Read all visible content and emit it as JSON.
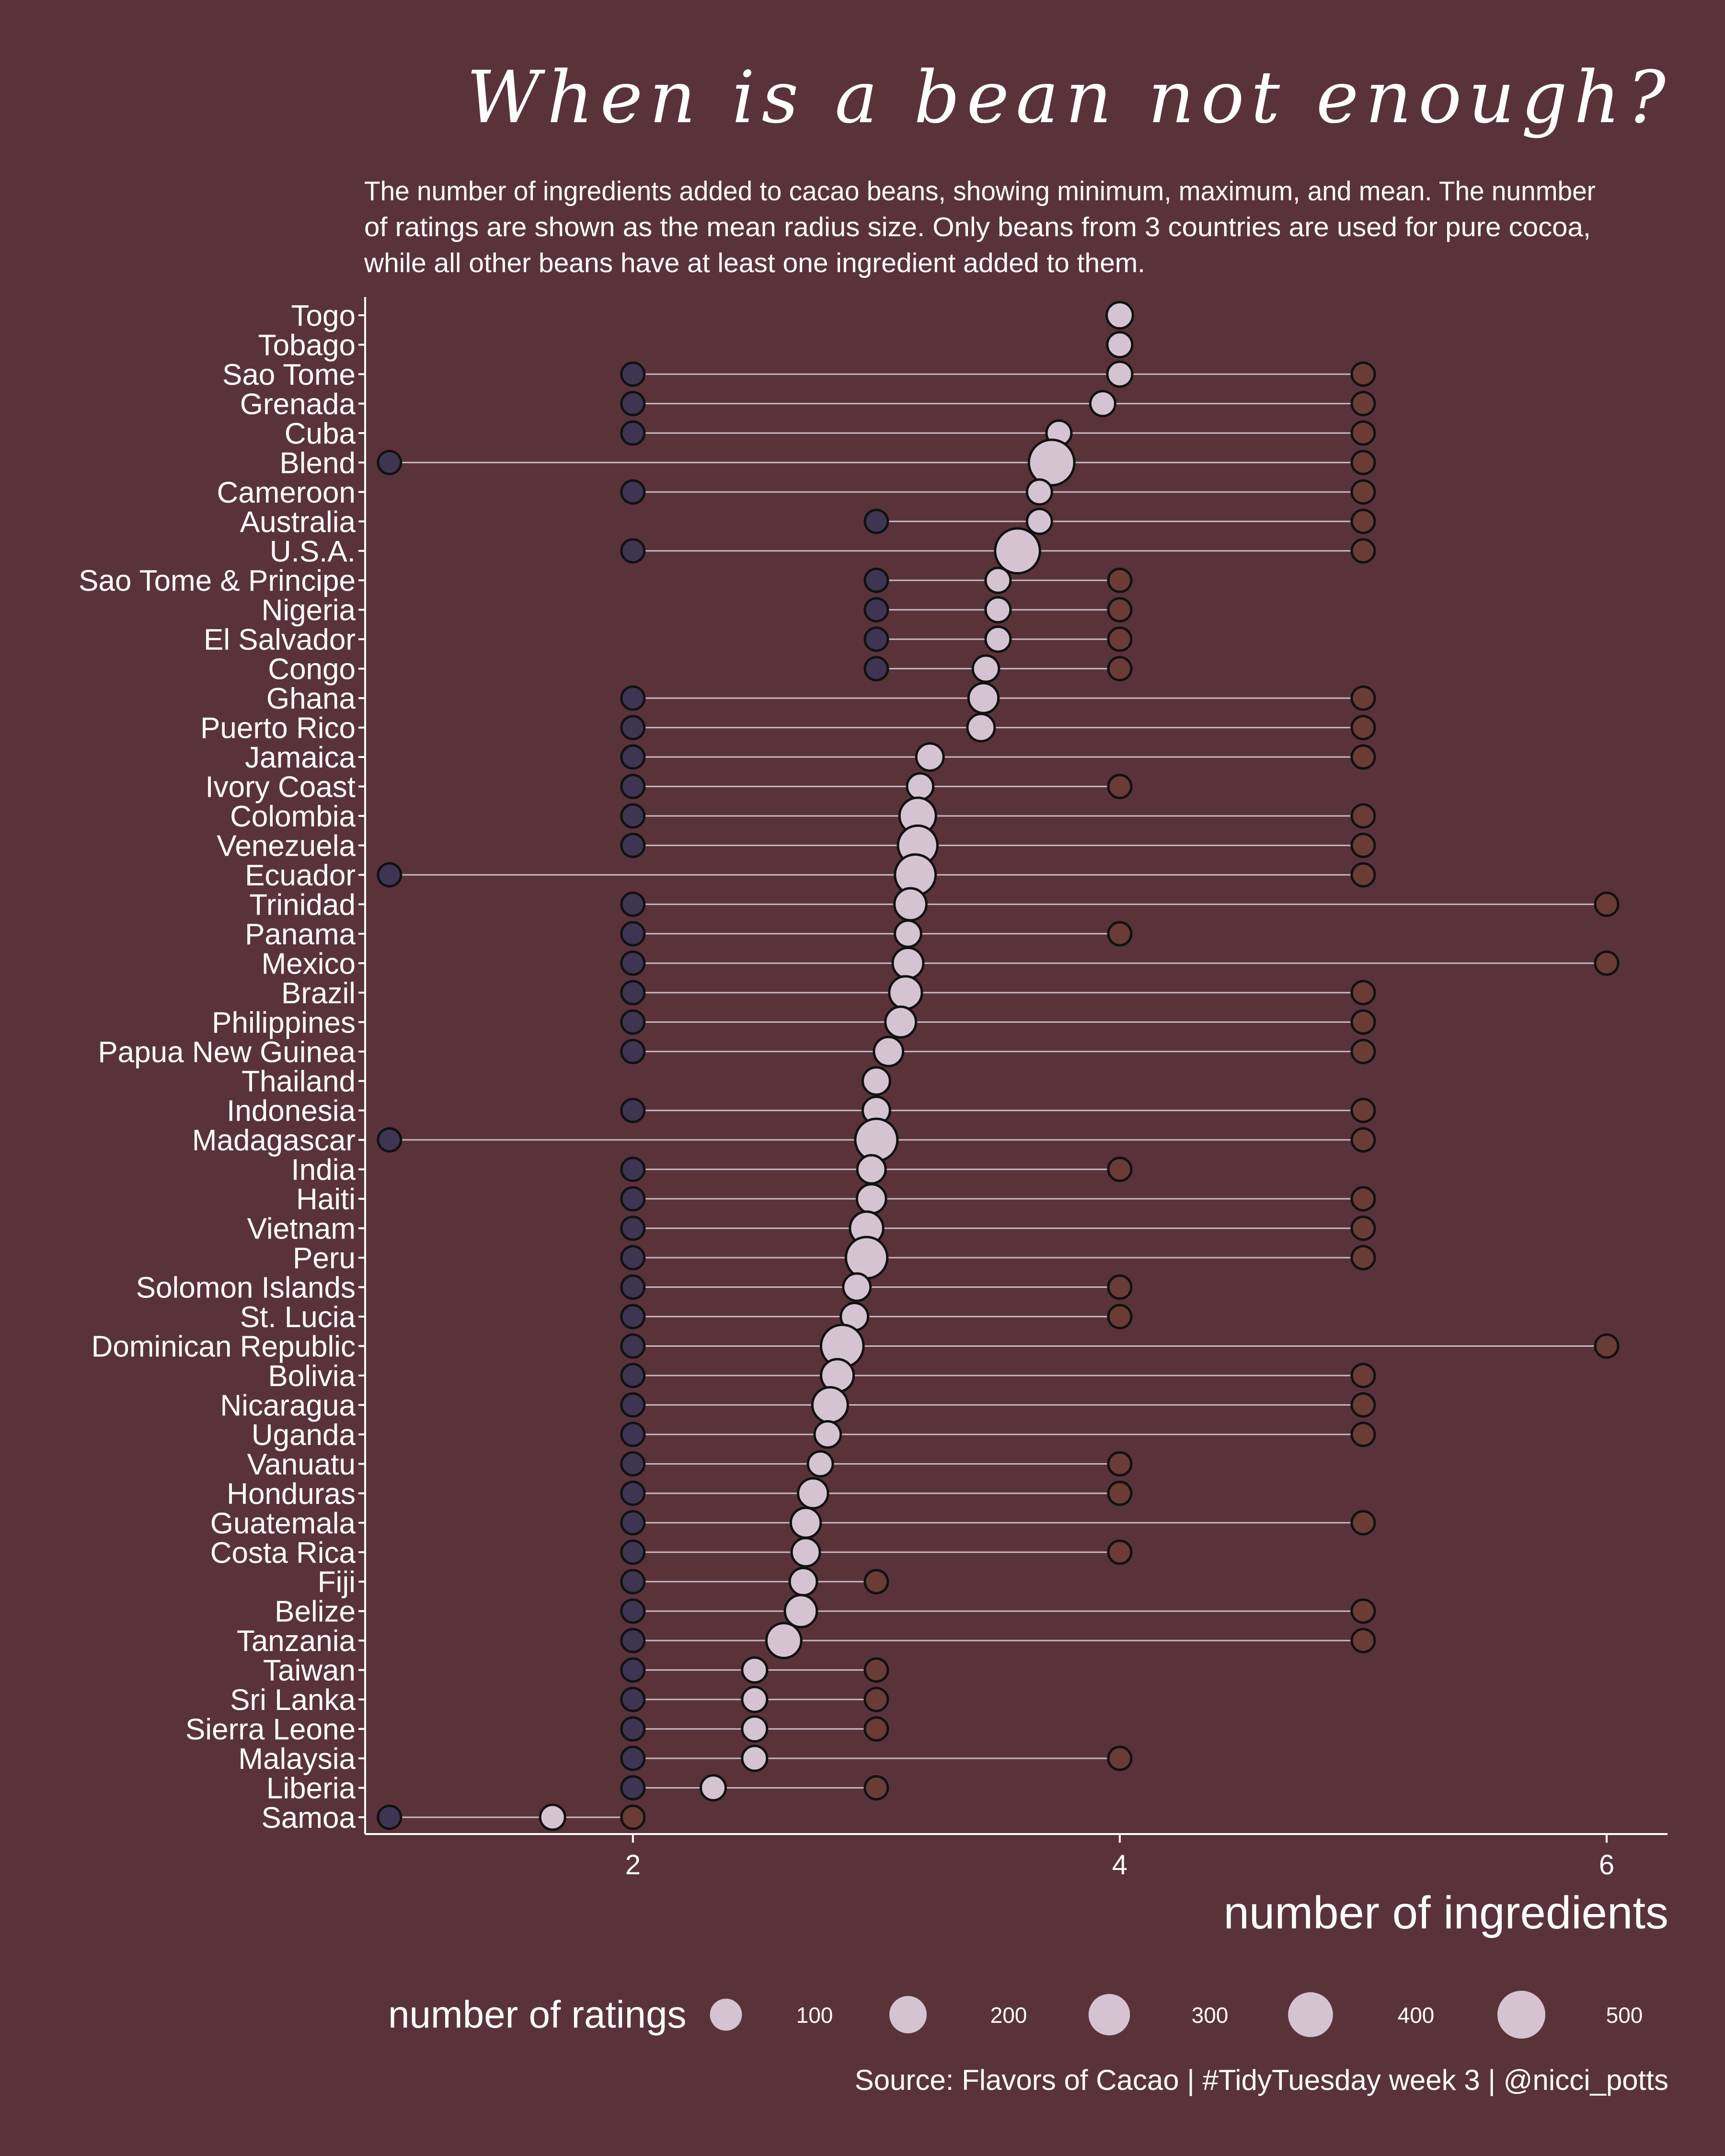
{
  "title": "When is a bean not enough?",
  "subtitle_lines": [
    "The number of ingredients added to cacao beans, showing minimum, maximum, and mean. The nunmber",
    "of ratings are shown as the mean radius size. Only beans from 3 countries are used for pure cocoa,",
    "while all other beans have at least one ingredient added to them."
  ],
  "caption": "Source: Flavors of Cacao  |  #TidyTuesday week 3 |  @nicci_potts",
  "colors": {
    "background": "#5a333a",
    "text": "#ffffff",
    "segment": "#c9b8c4",
    "mean_fill": "#d6c3d2",
    "min_fill": "#3e3552",
    "max_fill": "#6b3b36",
    "point_stroke": "#111111"
  },
  "chart_data": {
    "type": "dumbbell",
    "xlabel": "number of ingredients",
    "ylabel": "",
    "xlim": [
      0.9,
      6.25
    ],
    "x_ticks": [
      2,
      4,
      6
    ],
    "size_legend": {
      "title": "number of ratings",
      "values": [
        100,
        200,
        300,
        400,
        500
      ],
      "labels": [
        "100",
        "200",
        "300",
        "400",
        "500"
      ]
    },
    "categories": [
      "Togo",
      "Tobago",
      "Sao Tome",
      "Grenada",
      "Cuba",
      "Blend",
      "Cameroon",
      "Australia",
      "U.S.A.",
      "Sao Tome & Principe",
      "Nigeria",
      "El Salvador",
      "Congo",
      "Ghana",
      "Puerto Rico",
      "Jamaica",
      "Ivory Coast",
      "Colombia",
      "Venezuela",
      "Ecuador",
      "Trinidad",
      "Panama",
      "Mexico",
      "Brazil",
      "Philippines",
      "Papua New Guinea",
      "Thailand",
      "Indonesia",
      "Madagascar",
      "India",
      "Haiti",
      "Vietnam",
      "Peru",
      "Solomon Islands",
      "St. Lucia",
      "Dominican Republic",
      "Bolivia",
      "Nicaragua",
      "Uganda",
      "Vanuatu",
      "Honduras",
      "Guatemala",
      "Costa Rica",
      "Fiji",
      "Belize",
      "Tanzania",
      "Taiwan",
      "Sri Lanka",
      "Sierra Leone",
      "Malaysia",
      "Liberia",
      "Samoa"
    ],
    "series": [
      {
        "name": "minimum",
        "values": [
          4,
          4,
          2,
          2,
          2,
          1,
          2,
          3,
          2,
          3,
          3,
          3,
          3,
          2,
          2,
          2,
          2,
          2,
          2,
          1,
          2,
          2,
          2,
          2,
          2,
          2,
          3,
          2,
          1,
          2,
          2,
          2,
          2,
          2,
          2,
          2,
          2,
          2,
          2,
          2,
          2,
          2,
          2,
          2,
          2,
          2,
          2,
          2,
          2,
          2,
          2,
          1
        ]
      },
      {
        "name": "mean",
        "values": [
          4.0,
          4.0,
          4.0,
          3.93,
          3.75,
          3.72,
          3.67,
          3.67,
          3.58,
          3.5,
          3.5,
          3.5,
          3.45,
          3.44,
          3.43,
          3.22,
          3.18,
          3.17,
          3.17,
          3.16,
          3.14,
          3.13,
          3.13,
          3.12,
          3.1,
          3.05,
          3.0,
          3.0,
          3.0,
          2.98,
          2.98,
          2.96,
          2.96,
          2.92,
          2.91,
          2.86,
          2.84,
          2.81,
          2.8,
          2.77,
          2.74,
          2.71,
          2.71,
          2.7,
          2.69,
          2.62,
          2.5,
          2.5,
          2.5,
          2.5,
          2.33,
          1.67
        ]
      },
      {
        "name": "maximum",
        "values": [
          4,
          4,
          5,
          5,
          5,
          5,
          5,
          5,
          5,
          4,
          4,
          4,
          4,
          5,
          5,
          5,
          4,
          5,
          5,
          5,
          6,
          4,
          6,
          5,
          5,
          5,
          3,
          5,
          5,
          4,
          5,
          5,
          5,
          4,
          4,
          6,
          5,
          5,
          5,
          4,
          4,
          5,
          4,
          3,
          5,
          5,
          3,
          3,
          3,
          4,
          3,
          2
        ]
      },
      {
        "name": "number of ratings",
        "values": [
          30,
          20,
          20,
          20,
          20,
          420,
          20,
          20,
          400,
          20,
          20,
          20,
          30,
          70,
          40,
          40,
          30,
          180,
          250,
          280,
          100,
          30,
          80,
          110,
          80,
          60,
          40,
          40,
          320,
          50,
          60,
          120,
          300,
          40,
          40,
          330,
          110,
          160,
          30,
          20,
          70,
          70,
          50,
          40,
          100,
          150,
          20,
          20,
          20,
          20,
          20,
          20
        ]
      }
    ]
  }
}
